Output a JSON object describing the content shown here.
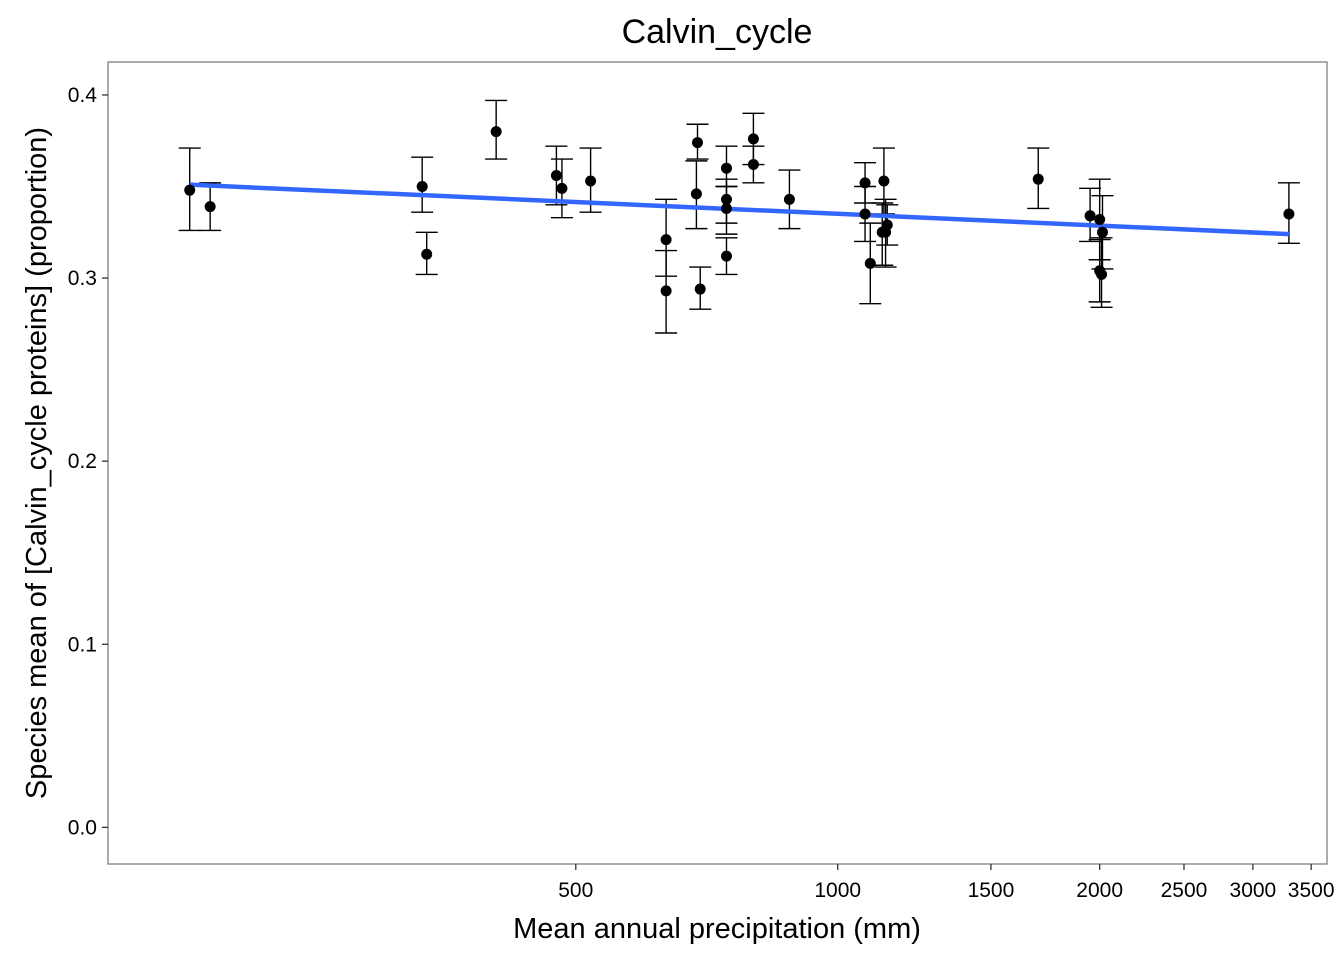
{
  "chart_data": {
    "type": "scatter",
    "title": "Calvin_cycle",
    "xlabel": "Mean annual precipitation (mm)",
    "ylabel": "Species mean of [Calvin_cycle proteins] (proportion)",
    "x_scale": "log",
    "xlim": [
      145,
      3650
    ],
    "ylim": [
      -0.02,
      0.418
    ],
    "x_ticks": [
      500,
      1000,
      1500,
      2000,
      2500,
      3000,
      3500
    ],
    "y_ticks": [
      0.0,
      0.1,
      0.2,
      0.3,
      0.4
    ],
    "y_tick_labels": [
      "0.0",
      "0.1",
      "0.2",
      "0.3",
      "0.4"
    ],
    "grid": false,
    "colors": {
      "points": "#000000",
      "trend": "#3366ff",
      "frame": "#808080"
    },
    "points": [
      {
        "x": 180,
        "y": 0.348,
        "lo": 0.326,
        "hi": 0.371
      },
      {
        "x": 190,
        "y": 0.339,
        "lo": 0.326,
        "hi": 0.352
      },
      {
        "x": 333,
        "y": 0.35,
        "lo": 0.336,
        "hi": 0.366
      },
      {
        "x": 337,
        "y": 0.313,
        "lo": 0.302,
        "hi": 0.325
      },
      {
        "x": 405,
        "y": 0.38,
        "lo": 0.365,
        "hi": 0.397
      },
      {
        "x": 475,
        "y": 0.356,
        "lo": 0.34,
        "hi": 0.372
      },
      {
        "x": 482,
        "y": 0.349,
        "lo": 0.333,
        "hi": 0.365
      },
      {
        "x": 520,
        "y": 0.353,
        "lo": 0.336,
        "hi": 0.371
      },
      {
        "x": 635,
        "y": 0.321,
        "lo": 0.301,
        "hi": 0.343
      },
      {
        "x": 635,
        "y": 0.293,
        "lo": 0.27,
        "hi": 0.315
      },
      {
        "x": 690,
        "y": 0.374,
        "lo": 0.365,
        "hi": 0.384
      },
      {
        "x": 688,
        "y": 0.346,
        "lo": 0.327,
        "hi": 0.364
      },
      {
        "x": 695,
        "y": 0.294,
        "lo": 0.283,
        "hi": 0.306
      },
      {
        "x": 745,
        "y": 0.36,
        "lo": 0.35,
        "hi": 0.372
      },
      {
        "x": 745,
        "y": 0.343,
        "lo": 0.33,
        "hi": 0.354
      },
      {
        "x": 745,
        "y": 0.338,
        "lo": 0.324,
        "hi": 0.35
      },
      {
        "x": 745,
        "y": 0.312,
        "lo": 0.302,
        "hi": 0.322
      },
      {
        "x": 800,
        "y": 0.376,
        "lo": 0.362,
        "hi": 0.39
      },
      {
        "x": 800,
        "y": 0.362,
        "lo": 0.352,
        "hi": 0.372
      },
      {
        "x": 880,
        "y": 0.343,
        "lo": 0.327,
        "hi": 0.359
      },
      {
        "x": 1075,
        "y": 0.352,
        "lo": 0.341,
        "hi": 0.363
      },
      {
        "x": 1075,
        "y": 0.335,
        "lo": 0.32,
        "hi": 0.35
      },
      {
        "x": 1090,
        "y": 0.308,
        "lo": 0.286,
        "hi": 0.33
      },
      {
        "x": 1130,
        "y": 0.353,
        "lo": 0.335,
        "hi": 0.371
      },
      {
        "x": 1125,
        "y": 0.325,
        "lo": 0.307,
        "hi": 0.341
      },
      {
        "x": 1135,
        "y": 0.325,
        "lo": 0.306,
        "hi": 0.343
      },
      {
        "x": 1140,
        "y": 0.329,
        "lo": 0.318,
        "hi": 0.34
      },
      {
        "x": 1700,
        "y": 0.354,
        "lo": 0.338,
        "hi": 0.371
      },
      {
        "x": 1950,
        "y": 0.334,
        "lo": 0.32,
        "hi": 0.349
      },
      {
        "x": 2000,
        "y": 0.332,
        "lo": 0.31,
        "hi": 0.354
      },
      {
        "x": 2015,
        "y": 0.325,
        "lo": 0.305,
        "hi": 0.345
      },
      {
        "x": 2000,
        "y": 0.304,
        "lo": 0.287,
        "hi": 0.321
      },
      {
        "x": 2010,
        "y": 0.302,
        "lo": 0.284,
        "hi": 0.322
      },
      {
        "x": 3300,
        "y": 0.335,
        "lo": 0.319,
        "hi": 0.352
      }
    ],
    "trend_line": {
      "x": [
        180,
        3300
      ],
      "y": [
        0.351,
        0.324
      ]
    }
  }
}
